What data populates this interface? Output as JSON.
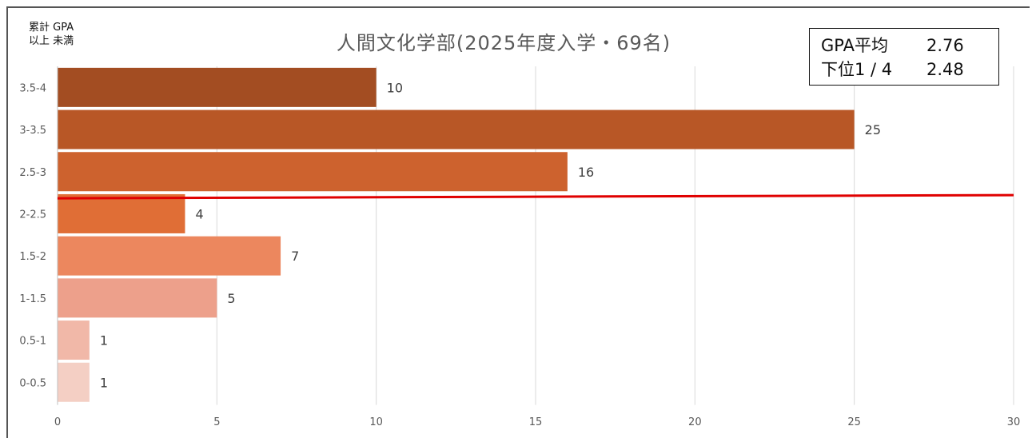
{
  "header": {
    "axis_caption_line1": "累計 GPA",
    "axis_caption_line2": "以上  未満",
    "title": "人間文化学部(2025年度入学・69名)"
  },
  "stats_box": {
    "mean_label": "GPA平均",
    "mean_value": "2.76",
    "quartile_label": "下位1 / 4",
    "quartile_value": "2.48"
  },
  "chart_data": {
    "type": "bar",
    "orientation": "horizontal",
    "title": "人間文化学部(2025年度入学・69名)",
    "categories": [
      "3.5-4",
      "3-3.5",
      "2.5-3",
      "2-2.5",
      "1.5-2",
      "1-1.5",
      "0.5-1",
      "0-0.5"
    ],
    "values": [
      10,
      25,
      16,
      4,
      7,
      5,
      1,
      1
    ],
    "xlim": [
      0,
      30
    ],
    "xticks": [
      0,
      5,
      10,
      15,
      20,
      25,
      30
    ],
    "grid": true,
    "colors": [
      "#a34d22",
      "#b85726",
      "#cd622e",
      "#e06e36",
      "#ec875e",
      "#eda08b",
      "#f1b8a8",
      "#f4cfc4"
    ],
    "reference_line": {
      "category_band": "2-2.5",
      "color": "#e00000"
    }
  }
}
